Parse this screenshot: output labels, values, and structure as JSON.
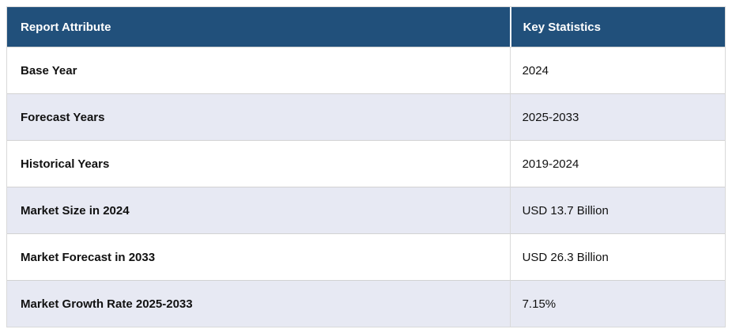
{
  "colors": {
    "header_bg": "#21507b",
    "header_text": "#ffffff",
    "row_bg": "#ffffff",
    "row_alt_bg": "#e7e9f3",
    "border": "#d9d9d9",
    "text": "#111111"
  },
  "chart_data": {
    "type": "table",
    "title": "",
    "columns": [
      "Report Attribute",
      "Key Statistics"
    ],
    "rows": [
      [
        "Base Year",
        "2024"
      ],
      [
        "Forecast Years",
        "2025-2033"
      ],
      [
        "Historical Years",
        "2019-2024"
      ],
      [
        "Market Size in 2024",
        "USD 13.7 Billion"
      ],
      [
        "Market Forecast in 2033",
        "USD 26.3 Billion"
      ],
      [
        "Market Growth Rate 2025-2033",
        "7.15%"
      ]
    ]
  },
  "table": {
    "header": {
      "attribute": "Report Attribute",
      "value": "Key Statistics"
    },
    "rows": [
      {
        "attribute": "Base Year",
        "value": "2024"
      },
      {
        "attribute": "Forecast Years",
        "value": "2025-2033"
      },
      {
        "attribute": "Historical Years",
        "value": "2019-2024"
      },
      {
        "attribute": "Market Size in 2024",
        "value": "USD 13.7 Billion"
      },
      {
        "attribute": "Market Forecast in 2033",
        "value": "USD 26.3 Billion"
      },
      {
        "attribute": "Market Growth Rate 2025-2033",
        "value": "7.15%"
      }
    ]
  }
}
